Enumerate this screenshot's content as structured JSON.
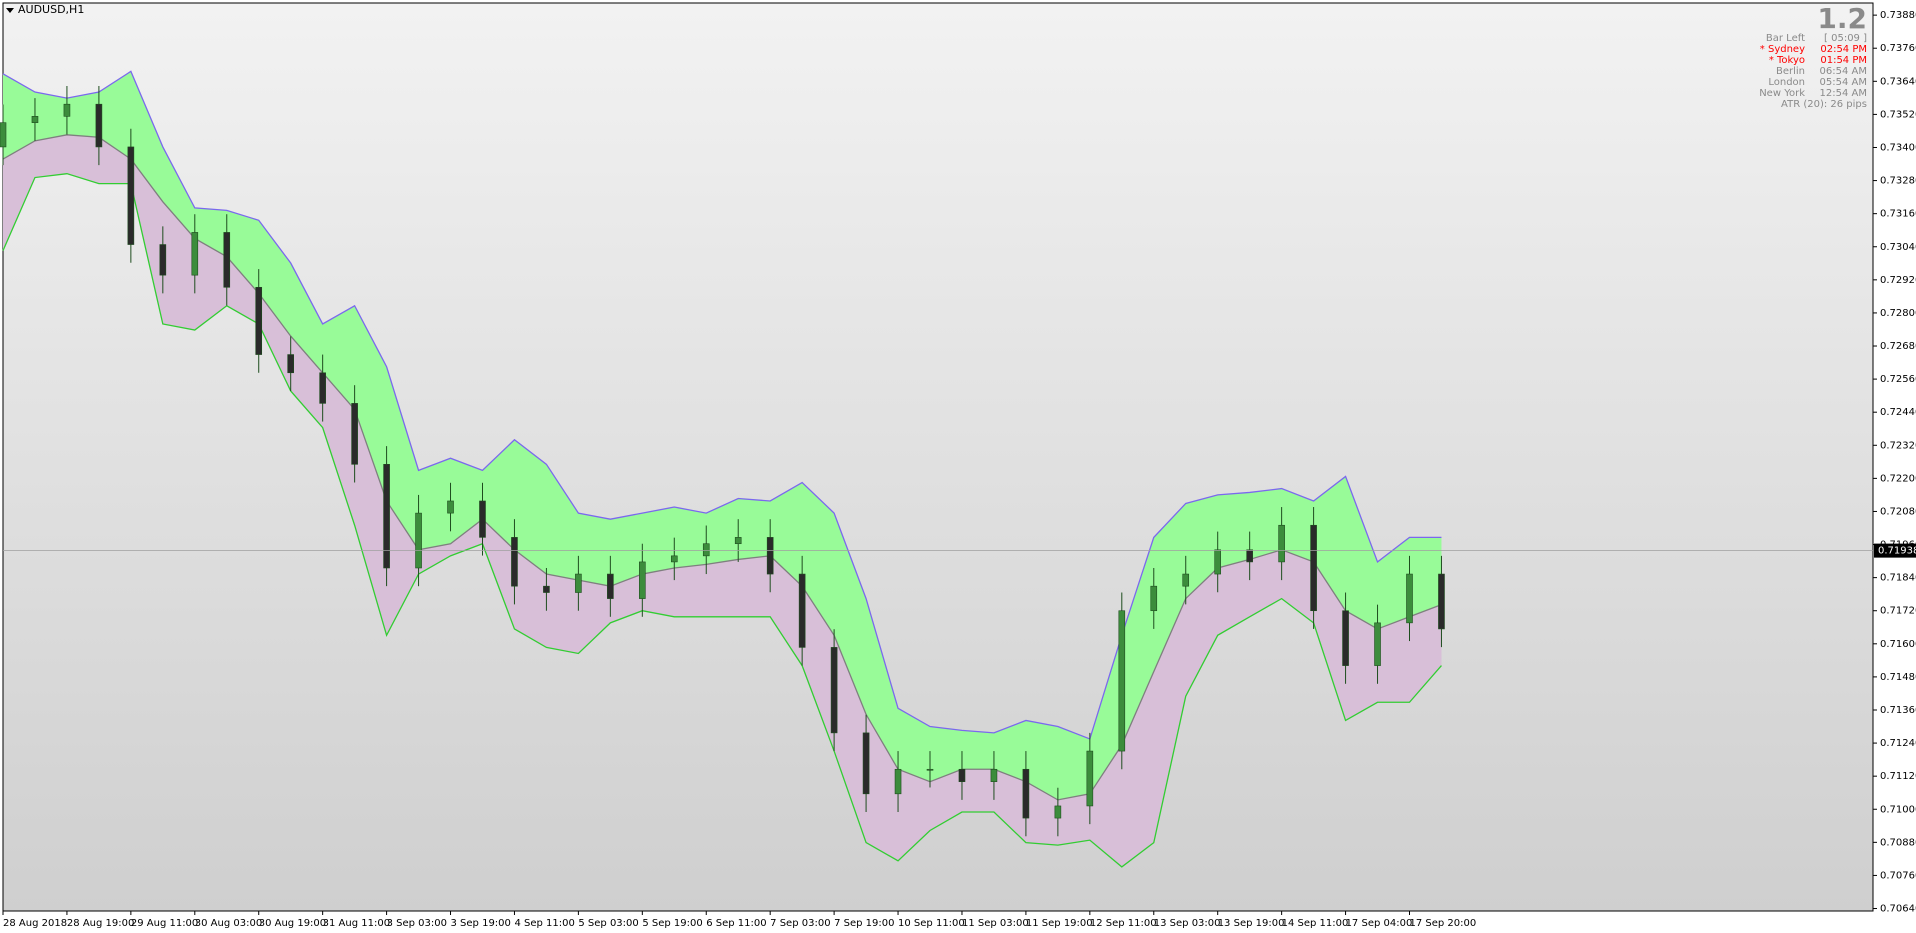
{
  "chart_data": {
    "type": "candlestick",
    "title": "AUDUSD,H1",
    "x": [
      0,
      8,
      16,
      24,
      32,
      40,
      48,
      56,
      64,
      72,
      80,
      88,
      96,
      104,
      112,
      120,
      128,
      136,
      144,
      152,
      160,
      168,
      176,
      184,
      192,
      200,
      208,
      216,
      224,
      232,
      240,
      248,
      256,
      264,
      272,
      280,
      288,
      296,
      304,
      312,
      320,
      328,
      336,
      344,
      352,
      360
    ],
    "open": [
      0.73402,
      0.7349,
      0.73513,
      0.73557,
      0.73402,
      0.73048,
      0.72937,
      0.73092,
      0.72893,
      0.72649,
      0.72583,
      0.72472,
      0.72251,
      0.71875,
      0.72074,
      0.72118,
      0.71986,
      0.71809,
      0.71786,
      0.71853,
      0.71764,
      0.71897,
      0.71919,
      0.71963,
      0.71986,
      0.71853,
      0.71587,
      0.71277,
      0.71056,
      0.71145,
      0.71145,
      0.711,
      0.71145,
      0.70968,
      0.71012,
      0.71211,
      0.7172,
      0.71809,
      0.71853,
      0.71941,
      0.71897,
      0.7203,
      0.7172,
      0.71521,
      0.71676,
      0.71853
    ],
    "high": [
      0.73556,
      0.73579,
      0.73623,
      0.73623,
      0.73468,
      0.73114,
      0.73158,
      0.73158,
      0.72959,
      0.72715,
      0.72649,
      0.72538,
      0.72317,
      0.7214,
      0.72184,
      0.72184,
      0.72052,
      0.71875,
      0.71919,
      0.71919,
      0.71963,
      0.71985,
      0.72029,
      0.72052,
      0.72052,
      0.71919,
      0.71653,
      0.71343,
      0.71211,
      0.71211,
      0.71211,
      0.71211,
      0.71211,
      0.71078,
      0.71277,
      0.71786,
      0.71875,
      0.71919,
      0.72007,
      0.72007,
      0.72096,
      0.72096,
      0.71786,
      0.71742,
      0.71919,
      0.71919
    ],
    "low": [
      0.73336,
      0.73424,
      0.73447,
      0.73336,
      0.72982,
      0.72871,
      0.72871,
      0.72827,
      0.72583,
      0.72517,
      0.72406,
      0.72185,
      0.71809,
      0.71809,
      0.72008,
      0.7192,
      0.71743,
      0.7172,
      0.7172,
      0.71698,
      0.71698,
      0.71831,
      0.71853,
      0.71897,
      0.71787,
      0.71521,
      0.71211,
      0.7099,
      0.7099,
      0.71079,
      0.71034,
      0.71034,
      0.70902,
      0.70902,
      0.70946,
      0.71145,
      0.71654,
      0.71743,
      0.71787,
      0.71831,
      0.71831,
      0.71654,
      0.71455,
      0.71455,
      0.7161,
      0.71588
    ],
    "close": [
      0.7349,
      0.73513,
      0.73557,
      0.73402,
      0.73048,
      0.72937,
      0.73092,
      0.72893,
      0.72649,
      0.72583,
      0.72472,
      0.72251,
      0.71875,
      0.72074,
      0.72118,
      0.71986,
      0.71809,
      0.71786,
      0.71853,
      0.71764,
      0.71897,
      0.71919,
      0.71963,
      0.71986,
      0.71853,
      0.71587,
      0.71277,
      0.71056,
      0.71145,
      0.71145,
      0.711,
      0.71145,
      0.70968,
      0.71012,
      0.71211,
      0.7172,
      0.71809,
      0.71853,
      0.71941,
      0.71897,
      0.7203,
      0.7172,
      0.71521,
      0.71676,
      0.71853,
      0.71654
    ],
    "upper": [
      0.73667,
      0.73601,
      0.73579,
      0.73601,
      0.73676,
      0.73402,
      0.73181,
      0.73172,
      0.73136,
      0.72981,
      0.7276,
      0.72826,
      0.72605,
      0.72229,
      0.72273,
      0.72229,
      0.7234,
      0.72251,
      0.72074,
      0.72052,
      0.72074,
      0.72096,
      0.72074,
      0.72127,
      0.72118,
      0.72185,
      0.72074,
      0.71764,
      0.71366,
      0.713,
      0.71286,
      0.71277,
      0.71322,
      0.713,
      0.71255,
      0.71631,
      0.71986,
      0.72109,
      0.7214,
      0.72149,
      0.72163,
      0.72118,
      0.72207,
      0.71897,
      0.71986,
      0.71986
    ],
    "middle": [
      0.73358,
      0.73424,
      0.73446,
      0.73437,
      0.73358,
      0.73203,
      0.7307,
      0.73004,
      0.72871,
      0.72716,
      0.72583,
      0.7245,
      0.72118,
      0.71941,
      0.71963,
      0.72052,
      0.71941,
      0.71853,
      0.71831,
      0.71809,
      0.71853,
      0.71875,
      0.71888,
      0.71906,
      0.71919,
      0.71809,
      0.71631,
      0.71344,
      0.71145,
      0.711,
      0.71145,
      0.71145,
      0.711,
      0.71034,
      0.71056,
      0.71233,
      0.71499,
      0.71764,
      0.71875,
      0.71906,
      0.71941,
      0.71897,
      0.7172,
      0.71654,
      0.71698,
      0.71742
    ],
    "lower": [
      0.73026,
      0.73291,
      0.73305,
      0.73269,
      0.73269,
      0.7276,
      0.72738,
      0.72826,
      0.7276,
      0.72517,
      0.72384,
      0.7203,
      0.71631,
      0.71853,
      0.71919,
      0.71963,
      0.71654,
      0.71587,
      0.71565,
      0.71676,
      0.7172,
      0.71698,
      0.71698,
      0.71698,
      0.71698,
      0.71521,
      0.71211,
      0.70879,
      0.70813,
      0.70923,
      0.7099,
      0.7099,
      0.70879,
      0.7087,
      0.70888,
      0.70791,
      0.70879,
      0.7141,
      0.71631,
      0.71698,
      0.71764,
      0.71676,
      0.71322,
      0.71388,
      0.71388,
      0.71521
    ],
    "upper_fill": "#98fb98",
    "lower_fill": "#d8bfd8",
    "upper_color": "#7b68ee",
    "middle_color": "#7f7f7f",
    "lower_color": "#32cd32",
    "bull_color": "#3c8c3c",
    "bear_color": "#2a2a2a",
    "wick_color": "#1e4d1e",
    "current_price": 0.71938,
    "xlim": [
      0,
      468
    ],
    "ylim": [
      0.70631,
      0.73924
    ],
    "xticks": [
      {
        "value": 0,
        "label": "28 Aug 2018"
      },
      {
        "value": 16,
        "label": "28 Aug 19:00"
      },
      {
        "value": 32,
        "label": "29 Aug 11:00"
      },
      {
        "value": 48,
        "label": "30 Aug 03:00"
      },
      {
        "value": 64,
        "label": "30 Aug 19:00"
      },
      {
        "value": 80,
        "label": "31 Aug 11:00"
      },
      {
        "value": 96,
        "label": "3 Sep 03:00"
      },
      {
        "value": 112,
        "label": "3 Sep 19:00"
      },
      {
        "value": 128,
        "label": "4 Sep 11:00"
      },
      {
        "value": 144,
        "label": "5 Sep 03:00"
      },
      {
        "value": 160,
        "label": "5 Sep 19:00"
      },
      {
        "value": 176,
        "label": "6 Sep 11:00"
      },
      {
        "value": 192,
        "label": "7 Sep 03:00"
      },
      {
        "value": 208,
        "label": "7 Sep 19:00"
      },
      {
        "value": 224,
        "label": "10 Sep 11:00"
      },
      {
        "value": 240,
        "label": "11 Sep 03:00"
      },
      {
        "value": 256,
        "label": "11 Sep 19:00"
      },
      {
        "value": 272,
        "label": "12 Sep 11:00"
      },
      {
        "value": 288,
        "label": "13 Sep 03:00"
      },
      {
        "value": 304,
        "label": "13 Sep 19:00"
      },
      {
        "value": 320,
        "label": "14 Sep 11:00"
      },
      {
        "value": 336,
        "label": "17 Sep 04:00"
      },
      {
        "value": 352,
        "label": "17 Sep 20:00"
      }
    ],
    "yticks": [
      {
        "value": 0.7388,
        "label": "0.73880"
      },
      {
        "value": 0.7376,
        "label": "0.73760"
      },
      {
        "value": 0.7364,
        "label": "0.73640"
      },
      {
        "value": 0.7352,
        "label": "0.73520"
      },
      {
        "value": 0.734,
        "label": "0.73400"
      },
      {
        "value": 0.7328,
        "label": "0.73280"
      },
      {
        "value": 0.7316,
        "label": "0.73160"
      },
      {
        "value": 0.7304,
        "label": "0.73040"
      },
      {
        "value": 0.7292,
        "label": "0.72920"
      },
      {
        "value": 0.728,
        "label": "0.72800"
      },
      {
        "value": 0.7268,
        "label": "0.72680"
      },
      {
        "value": 0.7256,
        "label": "0.72560"
      },
      {
        "value": 0.7244,
        "label": "0.72440"
      },
      {
        "value": 0.7232,
        "label": "0.72320"
      },
      {
        "value": 0.722,
        "label": "0.72200"
      },
      {
        "value": 0.7208,
        "label": "0.72080"
      },
      {
        "value": 0.7196,
        "label": "0.71960"
      },
      {
        "value": 0.7184,
        "label": "0.71840"
      },
      {
        "value": 0.7172,
        "label": "0.71720"
      },
      {
        "value": 0.716,
        "label": "0.71600"
      },
      {
        "value": 0.7148,
        "label": "0.71480"
      },
      {
        "value": 0.7136,
        "label": "0.71360"
      },
      {
        "value": 0.7124,
        "label": "0.71240"
      },
      {
        "value": 0.7112,
        "label": "0.71120"
      },
      {
        "value": 0.71,
        "label": "0.71000"
      },
      {
        "value": 0.7088,
        "label": "0.70880"
      },
      {
        "value": 0.7076,
        "label": "0.70760"
      },
      {
        "value": 0.7064,
        "label": "0.70640"
      }
    ],
    "info": {
      "value": "1.2",
      "rows": [
        {
          "label": "Bar Left",
          "time": "[ 05:09 ]",
          "color": "#8a8a8a"
        },
        {
          "label": "* Sydney",
          "time": "02:54 PM",
          "color": "#ff0000"
        },
        {
          "label": "* Tokyo",
          "time": "01:54 PM",
          "color": "#ff0000"
        },
        {
          "label": "Berlin",
          "time": "06:54 AM",
          "color": "#8a8a8a"
        },
        {
          "label": "London",
          "time": "05:54 AM",
          "color": "#8a8a8a"
        },
        {
          "label": "New York",
          "time": "12:54 AM",
          "color": "#8a8a8a"
        }
      ],
      "footer": "ATR (20): 26 pips"
    }
  }
}
